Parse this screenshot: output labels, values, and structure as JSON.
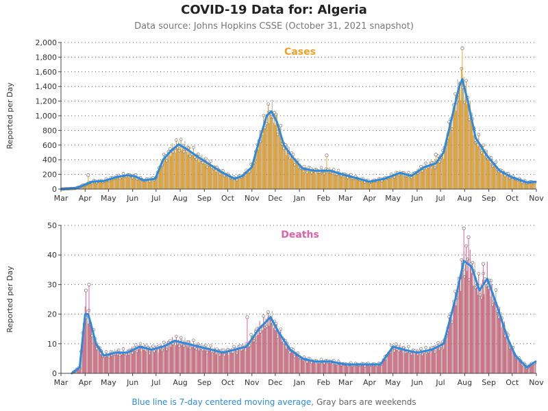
{
  "header": {
    "title": "COVID-19 Data for: Algeria",
    "subtitle": "Data source: Johns Hopkins CSSE (October 31, 2021 snapshot)"
  },
  "footnote": {
    "moving_average": "Blue line is 7-day centered moving average,",
    "weekends": "Gray bars are weekends"
  },
  "colors": {
    "cases_bar": "#f5a623",
    "cases_label": "#f0a020",
    "deaths_bar": "#e0609a",
    "deaths_label": "#e060a8",
    "moving_average": "#2b8ae0",
    "weekend_bar": "#999999"
  },
  "chart_data": [
    {
      "type": "bar",
      "label": "Cases",
      "ylabel": "Reported per Day",
      "ylim": [
        0,
        2000
      ],
      "yticks": [
        0,
        200,
        400,
        600,
        800,
        1000,
        1200,
        1400,
        1600,
        1800,
        2000
      ],
      "ytick_labels": [
        "0",
        "200",
        "400",
        "600",
        "800",
        "1,000",
        "1,200",
        "1,400",
        "1,600",
        "1,800",
        "2,000"
      ],
      "x_start": "2020-03-01",
      "x_end": "2021-11-01",
      "xticks": [
        {
          "date": "2020-03-01",
          "label": "Mar"
        },
        {
          "date": "2020-04-01",
          "label": "Apr"
        },
        {
          "date": "2020-05-01",
          "label": "May"
        },
        {
          "date": "2020-06-01",
          "label": "Jun"
        },
        {
          "date": "2020-07-01",
          "label": "Jul"
        },
        {
          "date": "2020-08-01",
          "label": "Aug"
        },
        {
          "date": "2020-09-01",
          "label": "Sep"
        },
        {
          "date": "2020-10-01",
          "label": "Oct"
        },
        {
          "date": "2020-11-01",
          "label": "Nov"
        },
        {
          "date": "2020-12-01",
          "label": "Dec"
        },
        {
          "date": "2021-01-01",
          "label": "Jan"
        },
        {
          "date": "2021-02-01",
          "label": "Feb"
        },
        {
          "date": "2021-03-01",
          "label": "Mar"
        },
        {
          "date": "2021-04-01",
          "label": "Apr"
        },
        {
          "date": "2021-05-01",
          "label": "May"
        },
        {
          "date": "2021-06-01",
          "label": "Jun"
        },
        {
          "date": "2021-07-01",
          "label": "Jul"
        },
        {
          "date": "2021-08-01",
          "label": "Aug"
        },
        {
          "date": "2021-09-01",
          "label": "Sep"
        },
        {
          "date": "2021-10-01",
          "label": "Oct"
        },
        {
          "date": "2021-11-01",
          "label": "Nov"
        }
      ],
      "moving_average": [
        [
          "2020-03-01",
          0
        ],
        [
          "2020-03-20",
          10
        ],
        [
          "2020-04-01",
          60
        ],
        [
          "2020-04-10",
          100
        ],
        [
          "2020-04-25",
          110
        ],
        [
          "2020-05-10",
          160
        ],
        [
          "2020-05-25",
          190
        ],
        [
          "2020-06-05",
          170
        ],
        [
          "2020-06-15",
          120
        ],
        [
          "2020-06-30",
          140
        ],
        [
          "2020-07-10",
          400
        ],
        [
          "2020-07-20",
          520
        ],
        [
          "2020-07-30",
          610
        ],
        [
          "2020-08-10",
          540
        ],
        [
          "2020-08-25",
          430
        ],
        [
          "2020-09-10",
          320
        ],
        [
          "2020-09-25",
          220
        ],
        [
          "2020-10-10",
          140
        ],
        [
          "2020-10-20",
          180
        ],
        [
          "2020-11-01",
          300
        ],
        [
          "2020-11-10",
          650
        ],
        [
          "2020-11-20",
          1000
        ],
        [
          "2020-11-26",
          1060
        ],
        [
          "2020-12-03",
          920
        ],
        [
          "2020-12-12",
          600
        ],
        [
          "2020-12-22",
          450
        ],
        [
          "2021-01-05",
          280
        ],
        [
          "2021-01-20",
          250
        ],
        [
          "2021-02-10",
          250
        ],
        [
          "2021-02-25",
          200
        ],
        [
          "2021-03-15",
          150
        ],
        [
          "2021-04-01",
          100
        ],
        [
          "2021-04-20",
          140
        ],
        [
          "2021-05-10",
          220
        ],
        [
          "2021-05-25",
          180
        ],
        [
          "2021-06-10",
          300
        ],
        [
          "2021-06-25",
          350
        ],
        [
          "2021-07-05",
          500
        ],
        [
          "2021-07-15",
          950
        ],
        [
          "2021-07-25",
          1400
        ],
        [
          "2021-07-29",
          1500
        ],
        [
          "2021-08-05",
          1200
        ],
        [
          "2021-08-15",
          700
        ],
        [
          "2021-08-30",
          450
        ],
        [
          "2021-09-15",
          250
        ],
        [
          "2021-10-01",
          160
        ],
        [
          "2021-10-20",
          90
        ],
        [
          "2021-10-31",
          100
        ]
      ],
      "outliers": [
        [
          "2021-07-29",
          1920
        ],
        [
          "2021-02-05",
          460
        ],
        [
          "2020-04-05",
          190
        ],
        [
          "2021-06-25",
          470
        ]
      ]
    },
    {
      "type": "bar",
      "label": "Deaths",
      "ylabel": "Reported per Day",
      "ylim": [
        0,
        50
      ],
      "yticks": [
        0,
        10,
        20,
        30,
        40,
        50
      ],
      "ytick_labels": [
        "0",
        "10",
        "20",
        "30",
        "40",
        "50"
      ],
      "x_start": "2020-03-01",
      "x_end": "2021-11-01",
      "xticks": [
        {
          "date": "2020-03-01",
          "label": "Mar"
        },
        {
          "date": "2020-04-01",
          "label": "Apr"
        },
        {
          "date": "2020-05-01",
          "label": "May"
        },
        {
          "date": "2020-06-01",
          "label": "Jun"
        },
        {
          "date": "2020-07-01",
          "label": "Jul"
        },
        {
          "date": "2020-08-01",
          "label": "Aug"
        },
        {
          "date": "2020-09-01",
          "label": "Sep"
        },
        {
          "date": "2020-10-01",
          "label": "Oct"
        },
        {
          "date": "2020-11-01",
          "label": "Nov"
        },
        {
          "date": "2020-12-01",
          "label": "Dec"
        },
        {
          "date": "2021-01-01",
          "label": "Jan"
        },
        {
          "date": "2021-02-01",
          "label": "Feb"
        },
        {
          "date": "2021-03-01",
          "label": "Mar"
        },
        {
          "date": "2021-04-01",
          "label": "Apr"
        },
        {
          "date": "2021-05-01",
          "label": "May"
        },
        {
          "date": "2021-06-01",
          "label": "Jun"
        },
        {
          "date": "2021-07-01",
          "label": "Jul"
        },
        {
          "date": "2021-08-01",
          "label": "Aug"
        },
        {
          "date": "2021-09-01",
          "label": "Sep"
        },
        {
          "date": "2021-10-01",
          "label": "Oct"
        },
        {
          "date": "2021-11-01",
          "label": "Nov"
        }
      ],
      "moving_average": [
        [
          "2020-03-15",
          0
        ],
        [
          "2020-03-25",
          2
        ],
        [
          "2020-04-01",
          20
        ],
        [
          "2020-04-05",
          20
        ],
        [
          "2020-04-15",
          10
        ],
        [
          "2020-04-25",
          6
        ],
        [
          "2020-05-10",
          7
        ],
        [
          "2020-05-25",
          7
        ],
        [
          "2020-06-10",
          9
        ],
        [
          "2020-06-25",
          8
        ],
        [
          "2020-07-10",
          9
        ],
        [
          "2020-07-25",
          11
        ],
        [
          "2020-08-10",
          10
        ],
        [
          "2020-08-25",
          9
        ],
        [
          "2020-09-10",
          8
        ],
        [
          "2020-09-25",
          7
        ],
        [
          "2020-10-10",
          8
        ],
        [
          "2020-10-25",
          9
        ],
        [
          "2020-11-10",
          15
        ],
        [
          "2020-11-25",
          19
        ],
        [
          "2020-12-05",
          14
        ],
        [
          "2020-12-20",
          8
        ],
        [
          "2021-01-05",
          5
        ],
        [
          "2021-01-20",
          4
        ],
        [
          "2021-02-10",
          4
        ],
        [
          "2021-03-01",
          3
        ],
        [
          "2021-03-20",
          3
        ],
        [
          "2021-04-15",
          3
        ],
        [
          "2021-05-01",
          9
        ],
        [
          "2021-05-15",
          8
        ],
        [
          "2021-06-01",
          7
        ],
        [
          "2021-06-20",
          8
        ],
        [
          "2021-07-05",
          10
        ],
        [
          "2021-07-20",
          25
        ],
        [
          "2021-07-31",
          38
        ],
        [
          "2021-08-10",
          36
        ],
        [
          "2021-08-20",
          28
        ],
        [
          "2021-08-30",
          32
        ],
        [
          "2021-09-10",
          24
        ],
        [
          "2021-09-25",
          12
        ],
        [
          "2021-10-05",
          6
        ],
        [
          "2021-10-20",
          2
        ],
        [
          "2021-10-31",
          4
        ]
      ],
      "outliers": [
        [
          "2021-07-31",
          49
        ],
        [
          "2021-08-06",
          46
        ],
        [
          "2020-04-06",
          30
        ],
        [
          "2020-04-02",
          28
        ],
        [
          "2021-08-25",
          37
        ],
        [
          "2020-10-26",
          19
        ]
      ]
    }
  ]
}
